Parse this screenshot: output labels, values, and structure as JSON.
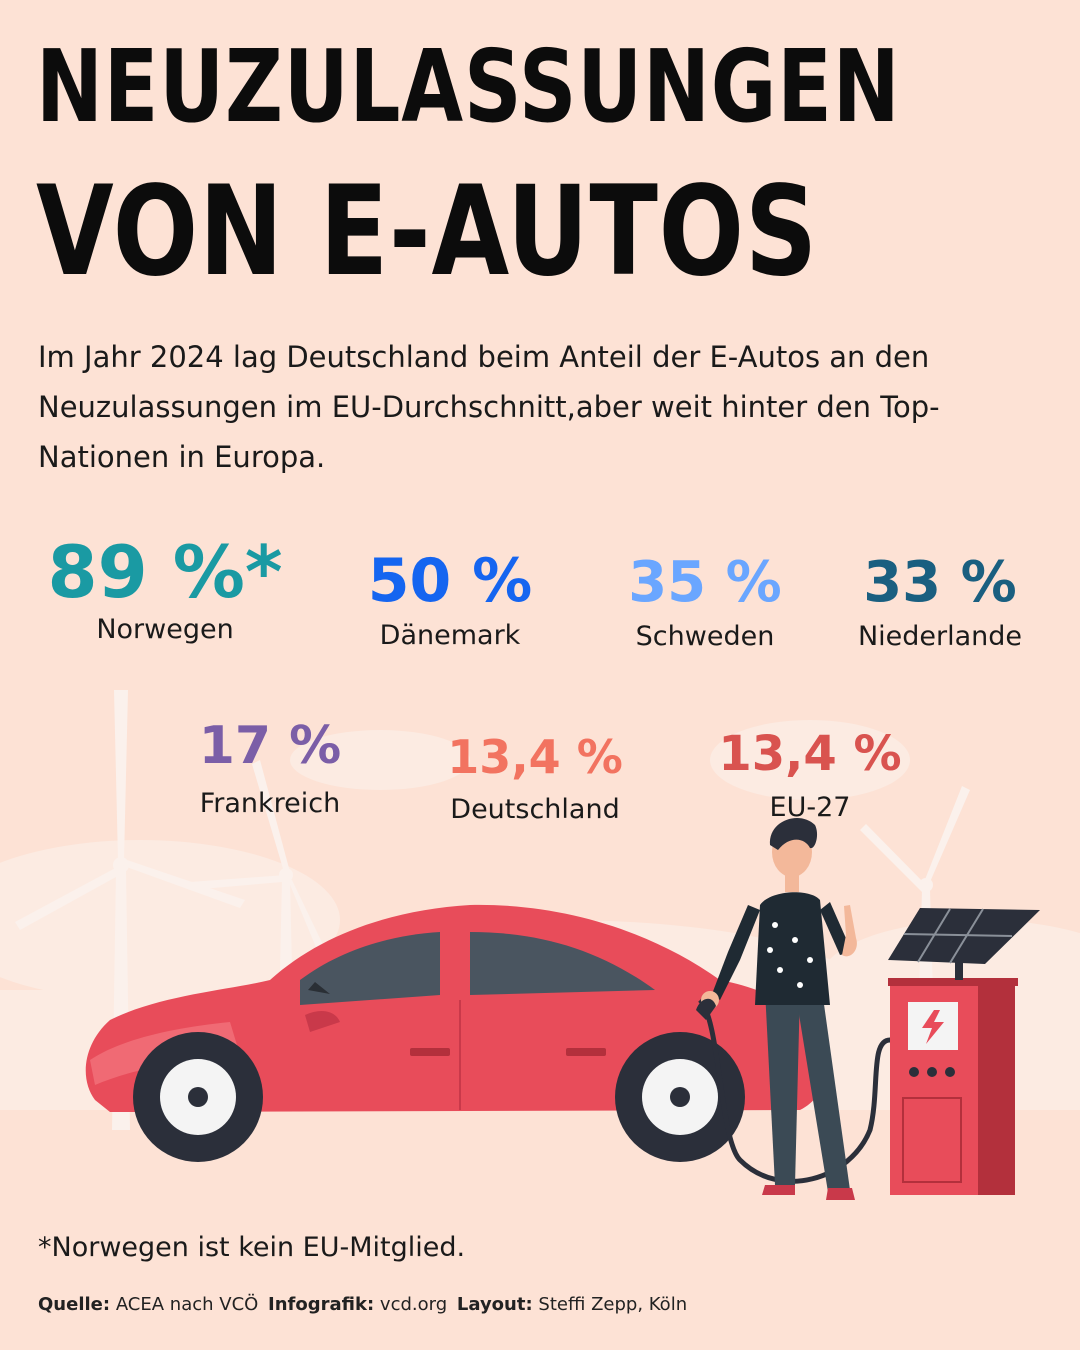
{
  "title": {
    "line1": "NEUZULASSUNGEN",
    "line2": "VON E-AUTOS"
  },
  "intro": "Im Jahr 2024 lag Deutschland beim Anteil der E-Autos an den Neuzulassungen im EU-Durchschnitt,aber weit hinter den Top-Nationen in Europa.",
  "stats": [
    {
      "value": "89 %*",
      "label": "Norwegen",
      "color": "#1a9aa3"
    },
    {
      "value": "50 %",
      "label": "Dänemark",
      "color": "#1565f0"
    },
    {
      "value": "35 %",
      "label": "Schweden",
      "color": "#6aa6ff"
    },
    {
      "value": "33 %",
      "label": "Niederlande",
      "color": "#1a5f80"
    },
    {
      "value": "17 %",
      "label": "Frankreich",
      "color": "#7b5ea7"
    },
    {
      "value": "13,4 %",
      "label": "Deutschland",
      "color": "#f27360"
    },
    {
      "value": "13,4 %",
      "label": "EU-27",
      "color": "#d9534f"
    }
  ],
  "footnote": "*Norwegen ist kein EU-Mitglied.",
  "source": {
    "source_label": "Quelle:",
    "source_value": "ACEA nach VCÖ",
    "infographic_label": "Infografik:",
    "infographic_value": "vcd.org",
    "layout_label": "Layout:",
    "layout_value": "Steffi Zepp, Köln"
  },
  "colors": {
    "background": "#fde2d5",
    "car": "#e84c5a",
    "charger": "#e84c5a"
  },
  "illustration": {
    "icons": [
      "wind-turbine-icon",
      "electric-car-icon",
      "person-icon",
      "charging-station-icon",
      "solar-panel-icon",
      "lightning-icon"
    ]
  }
}
